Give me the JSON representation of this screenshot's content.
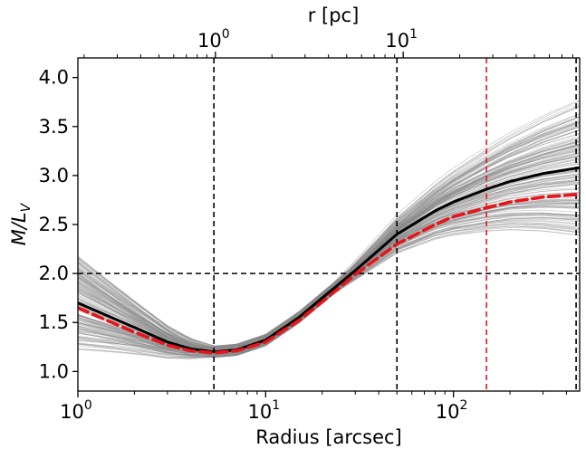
{
  "chart_data": {
    "type": "line",
    "xscale": "log",
    "xlim": [
      1,
      470
    ],
    "ylim": [
      0.8,
      4.2
    ],
    "xlabel": "Radius [arcsec]",
    "ylabel_main": "M/L",
    "ylabel_sub": "V",
    "top_axis_label": "r [pc]",
    "x_ticks": [
      {
        "value": 1,
        "base": "10",
        "exp": "0"
      },
      {
        "value": 10,
        "base": "10",
        "exp": "1"
      },
      {
        "value": 100,
        "base": "10",
        "exp": "2"
      }
    ],
    "top_ticks": [
      {
        "x_arcsec": 5.4,
        "base": "10",
        "exp": "0"
      },
      {
        "x_arcsec": 54,
        "base": "10",
        "exp": "1"
      }
    ],
    "y_ticks": [
      {
        "value": 1.0,
        "label": "1.0"
      },
      {
        "value": 1.5,
        "label": "1.5"
      },
      {
        "value": 2.0,
        "label": "2.0"
      },
      {
        "value": 2.5,
        "label": "2.5"
      },
      {
        "value": 3.0,
        "label": "3.0"
      },
      {
        "value": 3.5,
        "label": "3.5"
      },
      {
        "value": 4.0,
        "label": "4.0"
      }
    ],
    "reference_lines": [
      {
        "orientation": "vertical",
        "x": 5.3,
        "color": "#000000",
        "style": "dashed"
      },
      {
        "orientation": "vertical",
        "x": 50,
        "color": "#000000",
        "style": "dashed"
      },
      {
        "orientation": "vertical",
        "x": 150,
        "color": "#e8141b",
        "style": "dashed"
      },
      {
        "orientation": "vertical",
        "x": 450,
        "color": "#000000",
        "style": "dashed"
      },
      {
        "orientation": "horizontal",
        "y": 2.0,
        "color": "#000000",
        "style": "dashed"
      }
    ],
    "series": [
      {
        "style": "solid",
        "color": "#000000",
        "x": [
          1,
          2,
          3,
          4,
          5.3,
          7,
          10,
          15,
          20,
          30,
          50,
          80,
          100,
          150,
          200,
          300,
          470
        ],
        "y": [
          1.7,
          1.45,
          1.3,
          1.23,
          1.2,
          1.22,
          1.32,
          1.55,
          1.75,
          2.03,
          2.4,
          2.64,
          2.73,
          2.86,
          2.94,
          3.02,
          3.08
        ]
      },
      {
        "style": "dashed",
        "color": "#e8141b",
        "x": [
          1,
          2,
          3,
          4,
          5.3,
          7,
          10,
          15,
          20,
          30,
          50,
          80,
          100,
          150,
          200,
          300,
          470
        ],
        "y": [
          1.65,
          1.4,
          1.27,
          1.21,
          1.19,
          1.21,
          1.3,
          1.52,
          1.71,
          1.99,
          2.3,
          2.5,
          2.58,
          2.67,
          2.73,
          2.78,
          2.81
        ]
      }
    ],
    "ensemble": {
      "count": 160,
      "color": "#808080",
      "description_note": ""
    },
    "colors": {
      "primary": "#000000",
      "highlight": "#e8141b",
      "ensemble": "#a0a0a0"
    }
  }
}
